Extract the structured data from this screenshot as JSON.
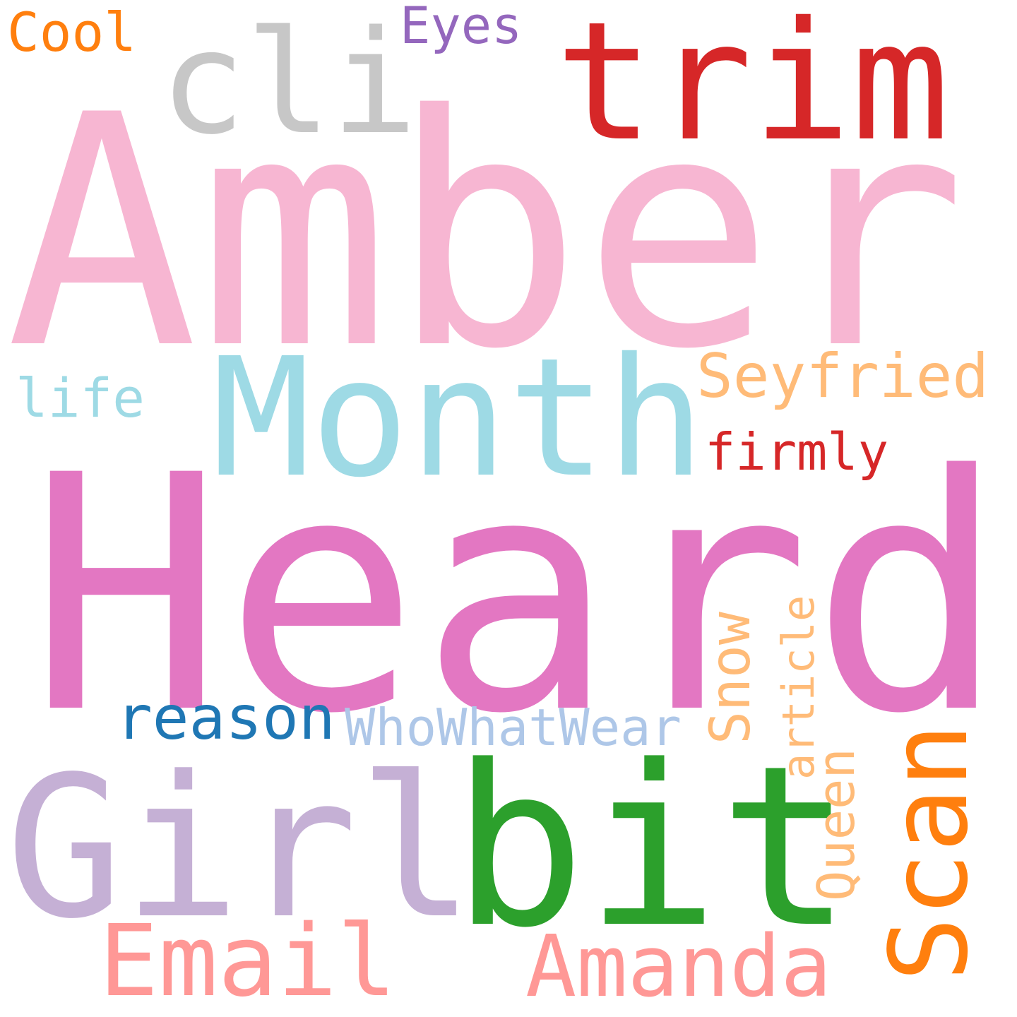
{
  "words": [
    {
      "id": "amber",
      "text": "Amber",
      "color": "#f7b6d2"
    },
    {
      "id": "heard",
      "text": "Heard",
      "color": "#e377c2"
    },
    {
      "id": "girl",
      "text": "Girl",
      "color": "#c5b0d5"
    },
    {
      "id": "bit",
      "text": "bit",
      "color": "#2ca02c"
    },
    {
      "id": "month",
      "text": "Month",
      "color": "#9edae5"
    },
    {
      "id": "trim",
      "text": "trim",
      "color": "#d62728"
    },
    {
      "id": "cli",
      "text": "cli",
      "color": "#c7c7c7"
    },
    {
      "id": "scan",
      "text": "Scan",
      "color": "#ff7f0e"
    },
    {
      "id": "email",
      "text": "Email",
      "color": "#ff9896"
    },
    {
      "id": "amanda",
      "text": "Amanda",
      "color": "#ff9896"
    },
    {
      "id": "seyfried",
      "text": "Seyfried",
      "color": "#ffbb78"
    },
    {
      "id": "reason",
      "text": "reason",
      "color": "#1f77b4"
    },
    {
      "id": "firmly",
      "text": "firmly",
      "color": "#d62728"
    },
    {
      "id": "snow",
      "text": "Snow",
      "color": "#ffbb78"
    },
    {
      "id": "article",
      "text": "article",
      "color": "#ffbb78"
    },
    {
      "id": "queen",
      "text": "Queen",
      "color": "#ffbb78"
    },
    {
      "id": "whowhatwear",
      "text": "WhoWhatWear",
      "color": "#aec7e8"
    },
    {
      "id": "eyes",
      "text": "Eyes",
      "color": "#9467bd"
    },
    {
      "id": "cool",
      "text": "Cool",
      "color": "#ff7f0e"
    },
    {
      "id": "life",
      "text": "life",
      "color": "#9edae5"
    }
  ]
}
